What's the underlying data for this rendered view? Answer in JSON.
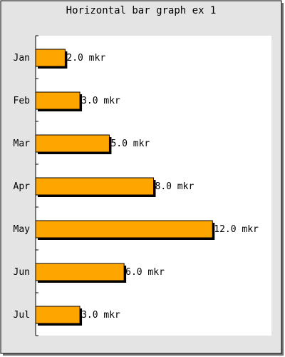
{
  "chart_data": {
    "type": "bar",
    "orientation": "horizontal",
    "title": "Horizontal bar graph ex 1",
    "categories": [
      "Jan",
      "Feb",
      "Mar",
      "Apr",
      "May",
      "Jun",
      "Jul"
    ],
    "values": [
      2.0,
      3.0,
      5.0,
      8.0,
      12.0,
      6.0,
      3.0
    ],
    "value_labels": [
      "2.0 mkr",
      "3.0 mkr",
      "5.0 mkr",
      "8.0 mkr",
      "12.0 mkr",
      "6.0 mkr",
      "3.0 mkr"
    ],
    "xlabel": "",
    "ylabel": "",
    "xlim": [
      0,
      16
    ],
    "grid": false,
    "legend": "none",
    "colors": {
      "bar": "#ffa500",
      "bar_shadow": "#000000",
      "frame_background": "#e4e4e4",
      "plot_background": "#ffffff",
      "frame_shadow": "#6e6e6e"
    }
  }
}
